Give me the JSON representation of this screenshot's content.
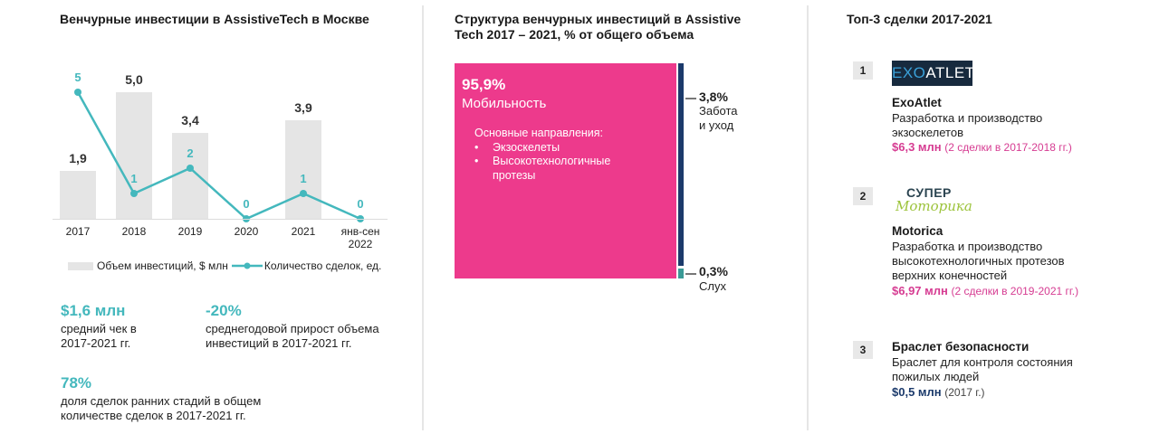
{
  "left": {
    "title": "Венчурные инвестиции в AssistiveTech в Москве",
    "chart_data_ref": "chart_data.0",
    "legend": {
      "bars": "Объем инвестиций, $ млн",
      "line": "Количество сделок, ед."
    },
    "kpis": [
      {
        "value": "$1,6 млн",
        "text_line1": "средний чек в",
        "text_line2": "2017-2021 гг."
      },
      {
        "value": "-20%",
        "text_line1": "среднегодовой прирост объема",
        "text_line2": "инвестиций в 2017-2021 гг."
      },
      {
        "value": "78%",
        "text_line1": "доля сделок ранних стадий в общем",
        "text_line2": "количестве сделок в 2017-2021 гг."
      }
    ]
  },
  "middle": {
    "title_line1": "Структура венчурных инвестиций в Assistive",
    "title_line2": "Tech 2017 – 2021, % от общего объема",
    "segments": [
      {
        "pct": "95,9%",
        "name": "Мобильность",
        "color": "#ed3a8c"
      },
      {
        "pct": "3,8%",
        "name_line1": "Забота",
        "name_line2": "и уход",
        "color": "#1b3a6b"
      },
      {
        "pct": "0,3%",
        "name": "Слух",
        "color": "#3a9a96"
      }
    ],
    "directions_title": "Основные направления:",
    "directions": [
      "Экзоскелеты",
      "Высокотехнологичные",
      "протезы"
    ]
  },
  "right": {
    "title": "Топ-3 сделки 2017-2021",
    "deals": [
      {
        "rank": "1",
        "logo_part1": "EXO",
        "logo_part2": "ATLET",
        "name": "ExoAtlet",
        "desc_line1": "Разработка и производство",
        "desc_line2": "экзоскелетов",
        "amount": "$6,3 млн",
        "note": "(2 сделки в 2017-2018 гг.)",
        "color": "#d63c92"
      },
      {
        "rank": "2",
        "logo_line1": "СУПЕР",
        "logo_line2": "Моторика",
        "name": "Motorica",
        "desc_line1": "Разработка и производство",
        "desc_line2": "высокотехнологичных протезов",
        "desc_line3": "верхних конечностей",
        "amount": "$6,97 млн",
        "note": "(2 сделки в 2019-2021 гг.)",
        "color": "#d63c92"
      },
      {
        "rank": "3",
        "name": "Браслет безопасности",
        "desc_line1": "Браслет для контроля состояния",
        "desc_line2": "пожилых людей",
        "amount": "$0,5 млн",
        "note": "(2017 г.)",
        "color": "#1b3a6b"
      }
    ]
  },
  "chart_data": [
    {
      "type": "bar",
      "title": "Венчурные инвестиции в AssistiveTech в Москве",
      "categories": [
        "2017",
        "2018",
        "2019",
        "2020",
        "2021",
        "янв-сен 2022"
      ],
      "category_labels": [
        [
          "2017"
        ],
        [
          "2018"
        ],
        [
          "2019"
        ],
        [
          "2020"
        ],
        [
          "2021"
        ],
        [
          "янв-сен",
          "2022"
        ]
      ],
      "series": [
        {
          "name": "Объем инвестиций, $ млн",
          "type": "bar",
          "color": "#e5e5e5",
          "values": [
            1.9,
            5.0,
            3.4,
            null,
            3.9,
            null
          ],
          "labels": [
            "1,9",
            "5,0",
            "3,4",
            "",
            "3,9",
            ""
          ]
        },
        {
          "name": "Количество сделок, ед.",
          "type": "line",
          "color": "#44b8bd",
          "values": [
            5,
            1,
            2,
            0,
            1,
            0
          ],
          "labels": [
            "5",
            "1",
            "2",
            "0",
            "1",
            "0"
          ]
        }
      ],
      "xlabel": "",
      "ylabel": "",
      "grid": false,
      "legend_position": "bottom"
    },
    {
      "type": "bar",
      "title": "Структура венчурных инвестиций в Assistive Tech 2017 – 2021, % от общего объема",
      "categories": [
        "Мобильность",
        "Забота и уход",
        "Слух"
      ],
      "values": [
        95.9,
        3.8,
        0.3
      ],
      "unit": "%"
    }
  ]
}
